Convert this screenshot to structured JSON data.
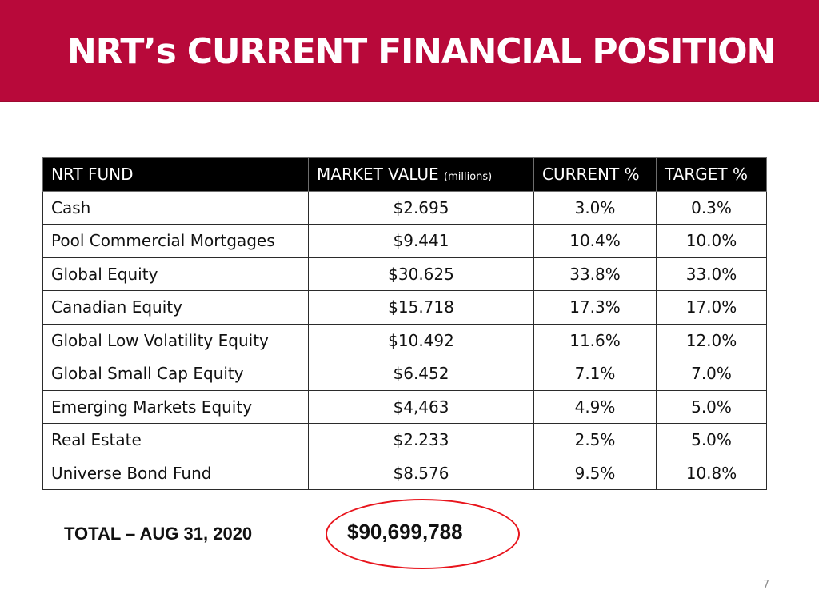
{
  "slide": {
    "title": "NRT’s CURRENT FINANCIAL POSITION",
    "page_number": "7"
  },
  "colors": {
    "header_background": "#b8093a",
    "table_header_background": "#000000",
    "highlight_oval": "#e8141c"
  },
  "table": {
    "headers": {
      "fund": "NRT FUND",
      "market_value": "MARKET VALUE",
      "market_value_unit": "(millions)",
      "current_pct": "CURRENT %",
      "target_pct": "TARGET %"
    },
    "rows": [
      {
        "fund": "Cash",
        "market_value": "$2.695",
        "current_pct": "3.0%",
        "target_pct": "0.3%"
      },
      {
        "fund": "Pool Commercial Mortgages",
        "market_value": "$9.441",
        "current_pct": "10.4%",
        "target_pct": "10.0%"
      },
      {
        "fund": "Global Equity",
        "market_value": "$30.625",
        "current_pct": "33.8%",
        "target_pct": "33.0%"
      },
      {
        "fund": "Canadian Equity",
        "market_value": "$15.718",
        "current_pct": "17.3%",
        "target_pct": "17.0%"
      },
      {
        "fund": "Global Low Volatility Equity",
        "market_value": "$10.492",
        "current_pct": "11.6%",
        "target_pct": "12.0%"
      },
      {
        "fund": "Global Small Cap Equity",
        "market_value": "$6.452",
        "current_pct": "7.1%",
        "target_pct": "7.0%"
      },
      {
        "fund": "Emerging Markets Equity",
        "market_value": "$4,463",
        "current_pct": "4.9%",
        "target_pct": "5.0%"
      },
      {
        "fund": "Real Estate",
        "market_value": "$2.233",
        "current_pct": "2.5%",
        "target_pct": "5.0%"
      },
      {
        "fund": "Universe Bond Fund",
        "market_value": "$8.576",
        "current_pct": "9.5%",
        "target_pct": "10.8%"
      }
    ]
  },
  "total": {
    "label": "TOTAL – AUG 31, 2020",
    "value": "$90,699,788"
  }
}
